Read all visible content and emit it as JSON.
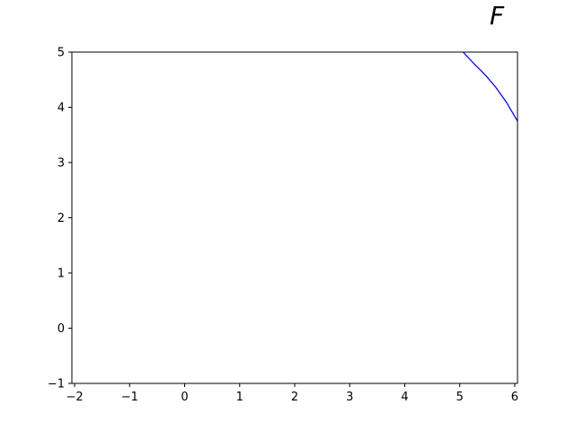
{
  "chart_data": {
    "type": "line",
    "title": "F",
    "xlabel": "",
    "ylabel": "",
    "xlim": [
      -2.05,
      6.05
    ],
    "ylim": [
      -1,
      5
    ],
    "xticks": [
      -2,
      -1,
      0,
      1,
      2,
      3,
      4,
      5,
      6
    ],
    "yticks": [
      -1,
      0,
      1,
      2,
      3,
      4,
      5
    ],
    "grid": false,
    "series": [
      {
        "color": "#0000ff",
        "x": [
          5.06,
          5.25,
          5.45,
          5.65,
          5.85,
          6.05
        ],
        "y": [
          5.0,
          4.8,
          4.6,
          4.37,
          4.09,
          3.75
        ]
      }
    ]
  }
}
